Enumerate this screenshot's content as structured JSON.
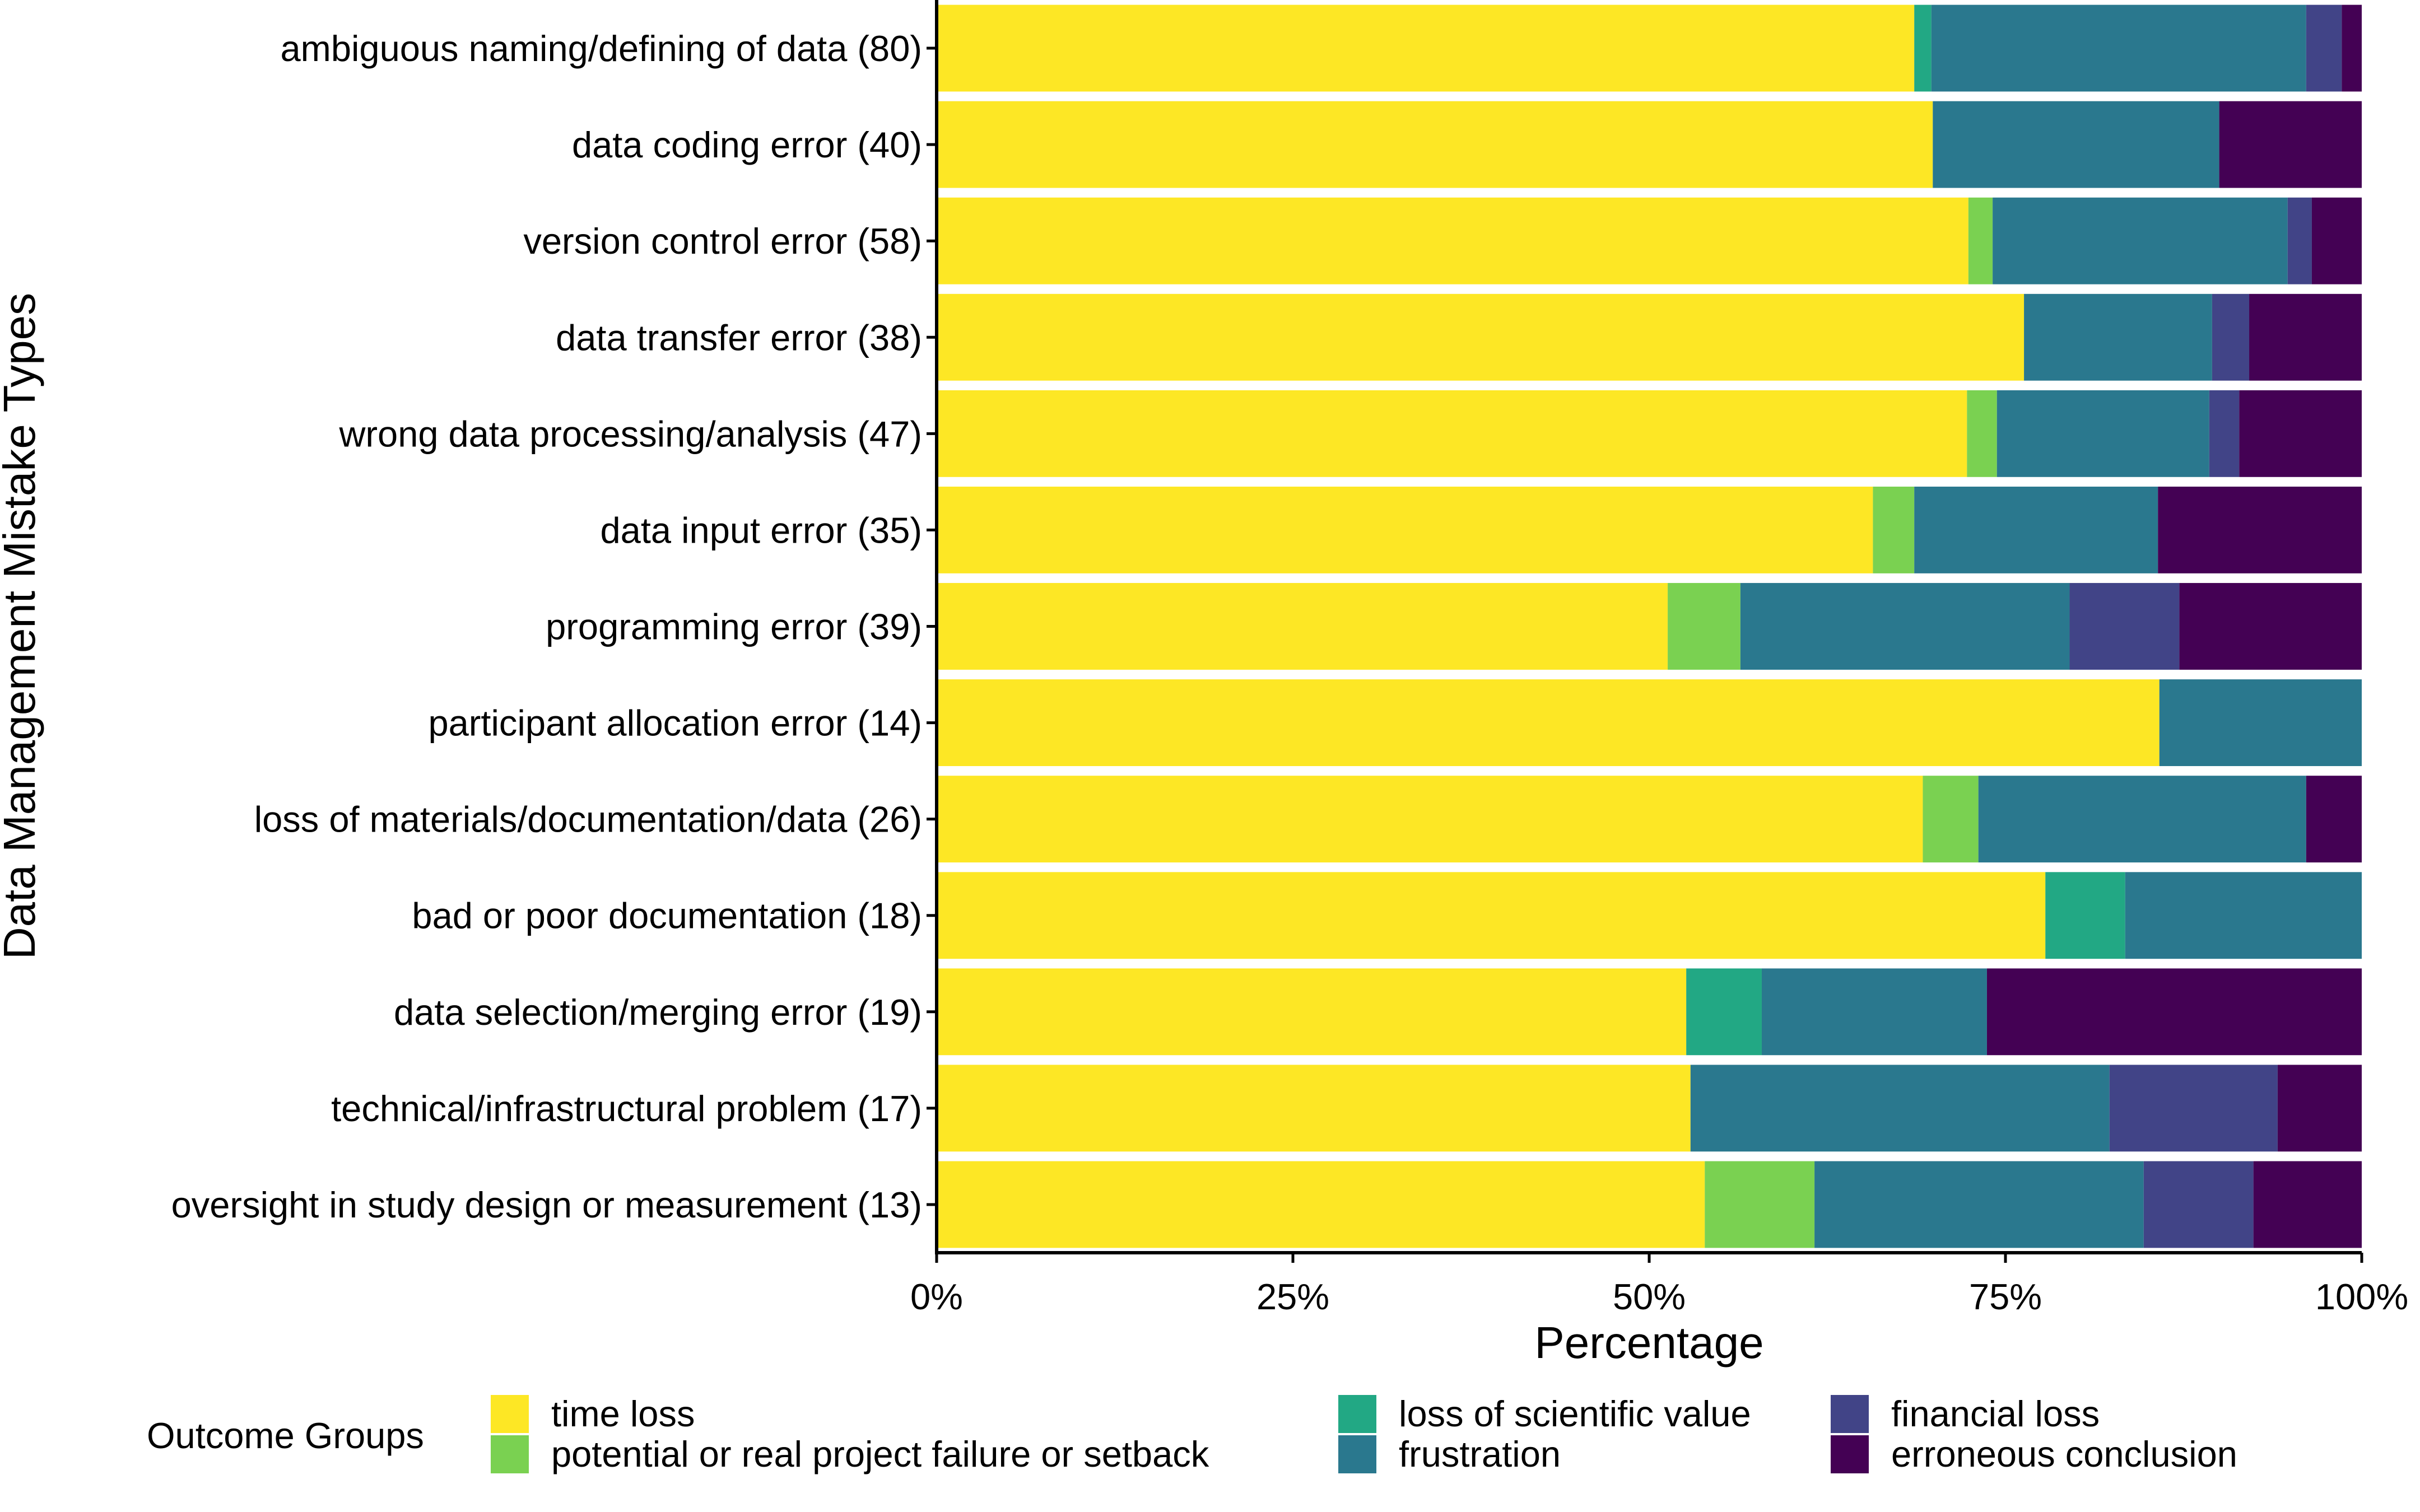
{
  "chart_data": {
    "type": "bar",
    "orientation": "horizontal",
    "stacked": "percent",
    "xlabel": "Percentage",
    "ylabel": "Data Management Mistake Types",
    "xlim": [
      0,
      100
    ],
    "x_ticks": [
      "0%",
      "25%",
      "50%",
      "75%",
      "100%"
    ],
    "x_tick_values": [
      0,
      25,
      50,
      75,
      100
    ],
    "grid": false,
    "legend_title": "Outcome Groups",
    "legend_position": "bottom",
    "categories": [
      "ambiguous naming/defining of data (80)",
      "data coding error (40)",
      "version control error (58)",
      "data transfer error (38)",
      "wrong data processing/analysis (47)",
      "data input error (35)",
      "programming error (39)",
      "participant allocation error (14)",
      "loss of materials/documentation/data (26)",
      "bad or poor documentation (18)",
      "data selection/merging error (19)",
      "technical/infrastructural problem (17)",
      "oversight in study design or measurement (13)"
    ],
    "series": [
      {
        "name": "time loss",
        "color": "#FDE725",
        "values": [
          68.6,
          69.9,
          72.4,
          76.3,
          72.3,
          65.7,
          51.3,
          85.8,
          69.2,
          77.8,
          52.6,
          52.9,
          53.9
        ]
      },
      {
        "name": "potential or real project failure or setback",
        "color": "#7AD151",
        "values": [
          0,
          0,
          1.7,
          0,
          2.1,
          2.9,
          5.1,
          0,
          3.9,
          0,
          0,
          0,
          7.7
        ]
      },
      {
        "name": "loss of scientific value",
        "color": "#22A884",
        "values": [
          1.2,
          0,
          0,
          0,
          0,
          0,
          0,
          0,
          0,
          5.6,
          5.3,
          0,
          0
        ]
      },
      {
        "name": "frustration",
        "color": "#2A788E",
        "values": [
          26.3,
          20.1,
          20.7,
          13.2,
          14.9,
          17.1,
          23.1,
          14.2,
          23.0,
          16.6,
          15.8,
          29.4,
          23.1
        ]
      },
      {
        "name": "financial loss",
        "color": "#414487",
        "values": [
          2.5,
          0,
          1.7,
          2.6,
          2.1,
          0,
          7.7,
          0,
          0,
          0,
          0,
          11.8,
          7.7
        ]
      },
      {
        "name": "erroneous conclusion",
        "color": "#440154",
        "values": [
          1.4,
          10.0,
          3.5,
          7.9,
          8.6,
          14.3,
          12.8,
          0,
          3.9,
          0,
          26.3,
          5.9,
          7.6
        ]
      }
    ]
  }
}
